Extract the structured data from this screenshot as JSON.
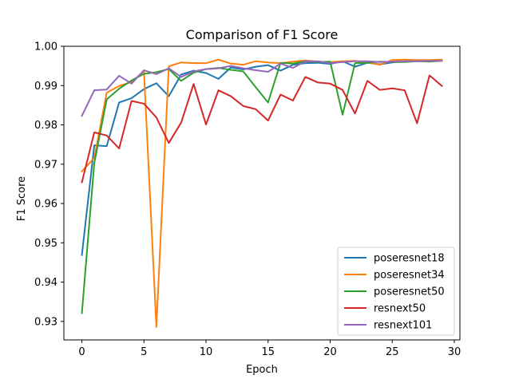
{
  "chart_data": {
    "type": "line",
    "title": "Comparison of F1 Score",
    "xlabel": "Epoch",
    "ylabel": "F1 Score",
    "xlim": [
      -1.45,
      30.45
    ],
    "ylim": [
      0.9253,
      1.0
    ],
    "xticks": [
      0,
      5,
      10,
      15,
      20,
      25,
      30
    ],
    "yticks": [
      0.93,
      0.94,
      0.95,
      0.96,
      0.97,
      0.98,
      0.99,
      1.0
    ],
    "ytick_labels": [
      "0.93",
      "0.94",
      "0.95",
      "0.96",
      "0.97",
      "0.98",
      "0.99",
      "1.00"
    ],
    "grid": false,
    "legend_position": "lower-right",
    "x": [
      0,
      1,
      2,
      3,
      4,
      5,
      6,
      7,
      8,
      9,
      10,
      11,
      12,
      13,
      14,
      15,
      16,
      17,
      18,
      19,
      20,
      21,
      22,
      23,
      24,
      25,
      26,
      27,
      28,
      29
    ],
    "series": [
      {
        "name": "poseresnet18",
        "color": "#1f77b4",
        "values": [
          0.9469,
          0.9748,
          0.9746,
          0.9857,
          0.9868,
          0.9891,
          0.9906,
          0.9873,
          0.9928,
          0.9938,
          0.9932,
          0.9917,
          0.9946,
          0.9941,
          0.9948,
          0.9952,
          0.9938,
          0.9953,
          0.9957,
          0.9958,
          0.9955,
          0.9962,
          0.9948,
          0.9958,
          0.9954,
          0.9959,
          0.9962,
          0.9964,
          0.9963,
          0.9964
        ]
      },
      {
        "name": "poseresnet34",
        "color": "#ff7f0e",
        "values": [
          0.9682,
          0.9716,
          0.9882,
          0.9899,
          0.9909,
          0.9937,
          0.9286,
          0.9949,
          0.9959,
          0.9957,
          0.9957,
          0.9966,
          0.9956,
          0.9953,
          0.9962,
          0.9959,
          0.9957,
          0.9961,
          0.9964,
          0.9961,
          0.996,
          0.9962,
          0.9963,
          0.9959,
          0.9953,
          0.9965,
          0.9966,
          0.9965,
          0.9965,
          0.9966
        ]
      },
      {
        "name": "poseresnet50",
        "color": "#2ca02c",
        "values": [
          0.9321,
          0.9703,
          0.9865,
          0.9892,
          0.9913,
          0.993,
          0.9934,
          0.9942,
          0.9912,
          0.9933,
          0.9942,
          0.9945,
          0.994,
          0.9936,
          0.9896,
          0.9857,
          0.9958,
          0.9956,
          0.9962,
          0.996,
          0.9961,
          0.9826,
          0.9957,
          0.9958,
          0.9961,
          0.996,
          0.996,
          0.9962,
          0.9961,
          0.9963
        ]
      },
      {
        "name": "resnext50",
        "color": "#d62728",
        "values": [
          0.9654,
          0.9781,
          0.9773,
          0.974,
          0.9861,
          0.9854,
          0.9819,
          0.9754,
          0.9806,
          0.9904,
          0.9801,
          0.9888,
          0.9873,
          0.9848,
          0.984,
          0.9811,
          0.9877,
          0.9862,
          0.9922,
          0.9908,
          0.9905,
          0.9889,
          0.9829,
          0.9912,
          0.9889,
          0.9893,
          0.9888,
          0.9804,
          0.9926,
          0.9899
        ]
      },
      {
        "name": "resnext101",
        "color": "#9467bd",
        "values": [
          0.9823,
          0.9888,
          0.989,
          0.9925,
          0.9905,
          0.9939,
          0.9929,
          0.9944,
          0.9922,
          0.9936,
          0.9942,
          0.9944,
          0.995,
          0.9944,
          0.9939,
          0.9935,
          0.9956,
          0.9945,
          0.9962,
          0.9962,
          0.9957,
          0.996,
          0.9962,
          0.9962,
          0.996,
          0.9961,
          0.9962,
          0.9962,
          0.9963,
          0.9963
        ]
      }
    ]
  }
}
